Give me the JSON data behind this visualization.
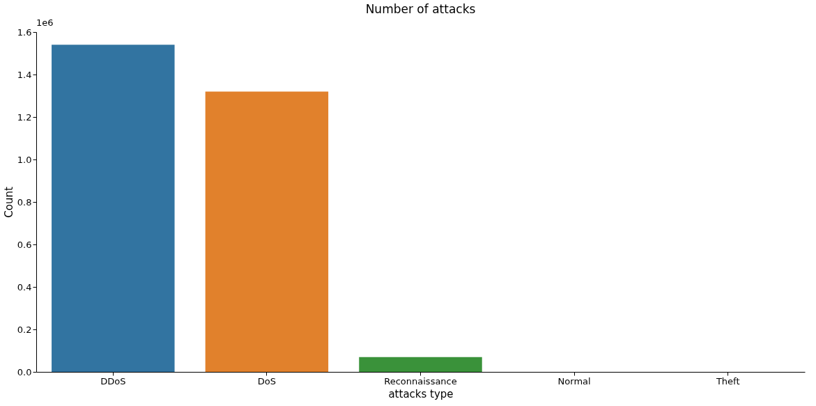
{
  "chart_data": {
    "type": "bar",
    "title": "Number of attacks",
    "xlabel": "attacks type",
    "ylabel": "Count",
    "categories": [
      "DDoS",
      "DoS",
      "Reconnaissance",
      "Normal",
      "Theft"
    ],
    "values": [
      1.54,
      1.32,
      0.07,
      0.0,
      0.0
    ],
    "colors": [
      "#3274a1",
      "#e1812c",
      "#3a923a",
      "#c03d3e",
      "#9372b2"
    ],
    "ylim": [
      0,
      1.6
    ],
    "yticks": [
      {
        "value": 0,
        "label": "0.0"
      },
      {
        "value": 0.2,
        "label": "0.2"
      },
      {
        "value": 0.4,
        "label": "0.4"
      },
      {
        "value": 0.6,
        "label": "0.6"
      },
      {
        "value": 0.8,
        "label": "0.8"
      },
      {
        "value": 1.0,
        "label": "1.0"
      },
      {
        "value": 1.2,
        "label": "1.2"
      },
      {
        "value": 1.4,
        "label": "1.4"
      },
      {
        "value": 1.6,
        "label": "1.6"
      }
    ],
    "annotations": [
      "1e6"
    ],
    "grid": false
  }
}
